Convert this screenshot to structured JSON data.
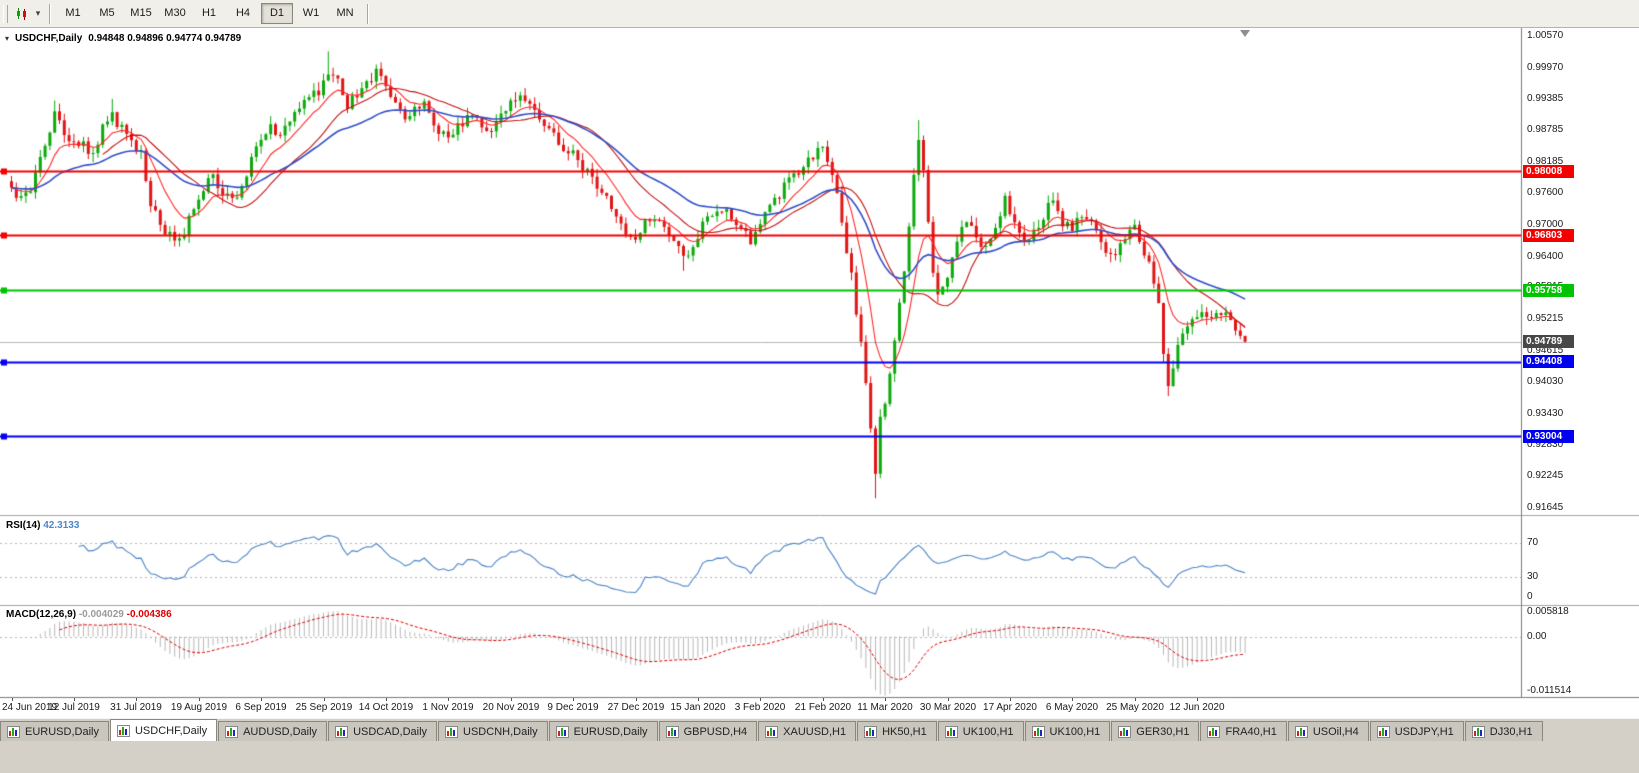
{
  "toolbar": {
    "timeframes": [
      {
        "label": "M1",
        "active": false
      },
      {
        "label": "M5",
        "active": false
      },
      {
        "label": "M15",
        "active": false
      },
      {
        "label": "M30",
        "active": false
      },
      {
        "label": "H1",
        "active": false
      },
      {
        "label": "H4",
        "active": false
      },
      {
        "label": "D1",
        "active": true
      },
      {
        "label": "W1",
        "active": false
      },
      {
        "label": "MN",
        "active": false
      }
    ]
  },
  "main_chart": {
    "title": "USDCHF,Daily",
    "ohlc_text": "0.94848 0.94896 0.94774 0.94789",
    "axis_labels": [
      "1.00570",
      "0.99970",
      "0.99385",
      "0.98785",
      "0.98185",
      "0.97600",
      "0.97000",
      "0.96400",
      "0.95815",
      "0.95215",
      "0.94615",
      "0.94030",
      "0.93430",
      "0.92830",
      "0.92245",
      "0.91645"
    ],
    "hlines": [
      {
        "label": "0.98008",
        "price": 0.98008,
        "color": "#f40000",
        "width": 2
      },
      {
        "label": "0.96803",
        "price": 0.96803,
        "color": "#f40000",
        "width": 2
      },
      {
        "label": "0.95758",
        "price": 0.95758,
        "color": "#00c400",
        "width": 2
      },
      {
        "label": "0.94408",
        "price": 0.94408,
        "color": "#0000f0",
        "width": 2
      },
      {
        "label": "0.93004",
        "price": 0.93004,
        "color": "#0000f0",
        "width": 2
      }
    ],
    "current_price": {
      "label": "0.94789",
      "value": 0.94789,
      "tag_color": "#474747",
      "line_color": "#b6b6b6"
    }
  },
  "rsi": {
    "label": "RSI(14)",
    "value_text": "42.3133",
    "period": 14,
    "levels": [
      70,
      30
    ],
    "axis_labels": [
      "70",
      "30",
      "0"
    ],
    "line_color": "#4f86c8"
  },
  "macd": {
    "label": "MACD(12,26,9)",
    "value_text": "-0.004029",
    "signal_text": "-0.004386",
    "axis_labels": [
      "0.005818",
      "0.00",
      "-0.011514"
    ],
    "max": 0.005818,
    "min": -0.011514,
    "hist_color": "#b9b9b9",
    "signal_color": "#e00000"
  },
  "xaxis": {
    "labels": [
      "24 Jun 2019",
      "12 Jul 2019",
      "31 Jul 2019",
      "19 Aug 2019",
      "6 Sep 2019",
      "25 Sep 2019",
      "14 Oct 2019",
      "1 Nov 2019",
      "20 Nov 2019",
      "9 Dec 2019",
      "27 Dec 2019",
      "15 Jan 2020",
      "3 Feb 2020",
      "21 Feb 2020",
      "11 Mar 2020",
      "30 Mar 2020",
      "17 Apr 2020",
      "6 May 2020",
      "25 May 2020",
      "12 Jun 2020"
    ]
  },
  "tabs": [
    {
      "label": "EURUSD,Daily",
      "active": false
    },
    {
      "label": "USDCHF,Daily",
      "active": true
    },
    {
      "label": "AUDUSD,Daily",
      "active": false
    },
    {
      "label": "USDCAD,Daily",
      "active": false
    },
    {
      "label": "USDCNH,Daily",
      "active": false
    },
    {
      "label": "EURUSD,Daily",
      "active": false
    },
    {
      "label": "GBPUSD,H4",
      "active": false
    },
    {
      "label": "XAUUSD,H1",
      "active": false
    },
    {
      "label": "HK50,H1",
      "active": false
    },
    {
      "label": "UK100,H1",
      "active": false
    },
    {
      "label": "UK100,H1",
      "active": false
    },
    {
      "label": "GER30,H1",
      "active": false
    },
    {
      "label": "FRA40,H1",
      "active": false
    },
    {
      "label": "USOil,H4",
      "active": false
    },
    {
      "label": "USDJPY,H1",
      "active": false
    },
    {
      "label": "DJ30,H1",
      "active": false
    }
  ],
  "chart_data": {
    "type": "candlestick",
    "symbol": "USDCHF",
    "period": "Daily",
    "title": "USDCHF,Daily",
    "price_max": 1.0057,
    "price_min": 0.91645,
    "candle_count": 258,
    "bars_per_x_label": 13,
    "up_color": "#0caa0c",
    "down_color": "#e01616",
    "moving_averages": [
      {
        "kind": "ema",
        "period": 9,
        "color": "#ff2a2a",
        "width": 1.1
      },
      {
        "kind": "sma",
        "period": 20,
        "color": "#c41414",
        "width": 1.1
      },
      {
        "kind": "ema",
        "period": 34,
        "color": "#3350c8",
        "width": 1.6
      }
    ],
    "close_anchors": [
      [
        0,
        0.977
      ],
      [
        2,
        0.9745
      ],
      [
        4,
        0.976
      ],
      [
        7,
        0.986
      ],
      [
        9,
        0.9905
      ],
      [
        11,
        0.987
      ],
      [
        13,
        0.985
      ],
      [
        15,
        0.986
      ],
      [
        17,
        0.983
      ],
      [
        19,
        0.988
      ],
      [
        21,
        0.991
      ],
      [
        23,
        0.988
      ],
      [
        25,
        0.9855
      ],
      [
        27,
        0.983
      ],
      [
        29,
        0.974
      ],
      [
        31,
        0.97
      ],
      [
        34,
        0.9672
      ],
      [
        36,
        0.969
      ],
      [
        38,
        0.974
      ],
      [
        40,
        0.9765
      ],
      [
        42,
        0.979
      ],
      [
        44,
        0.9755
      ],
      [
        46,
        0.9745
      ],
      [
        48,
        0.978
      ],
      [
        50,
        0.982
      ],
      [
        52,
        0.9855
      ],
      [
        54,
        0.9885
      ],
      [
        56,
        0.987
      ],
      [
        58,
        0.989
      ],
      [
        60,
        0.9915
      ],
      [
        62,
        0.994
      ],
      [
        64,
        0.9955
      ],
      [
        66,
        0.9985
      ],
      [
        68,
        0.9975
      ],
      [
        70,
        0.993
      ],
      [
        72,
        0.9945
      ],
      [
        74,
        0.9965
      ],
      [
        76,
        0.9985
      ],
      [
        78,
        0.996
      ],
      [
        80,
        0.993
      ],
      [
        82,
        0.9905
      ],
      [
        84,
        0.992
      ],
      [
        86,
        0.994
      ],
      [
        88,
        0.9895
      ],
      [
        90,
        0.987
      ],
      [
        92,
        0.988
      ],
      [
        94,
        0.9895
      ],
      [
        96,
        0.991
      ],
      [
        98,
        0.9885
      ],
      [
        100,
        0.988
      ],
      [
        102,
        0.9905
      ],
      [
        104,
        0.993
      ],
      [
        106,
        0.995
      ],
      [
        108,
        0.9935
      ],
      [
        110,
        0.9905
      ],
      [
        112,
        0.989
      ],
      [
        114,
        0.986
      ],
      [
        116,
        0.984
      ],
      [
        118,
        0.9825
      ],
      [
        120,
        0.98
      ],
      [
        122,
        0.9775
      ],
      [
        124,
        0.976
      ],
      [
        126,
        0.9715
      ],
      [
        128,
        0.9685
      ],
      [
        130,
        0.968
      ],
      [
        132,
        0.9705
      ],
      [
        134,
        0.972
      ],
      [
        136,
        0.97
      ],
      [
        138,
        0.9665
      ],
      [
        140,
        0.964
      ],
      [
        142,
        0.9665
      ],
      [
        144,
        0.97
      ],
      [
        146,
        0.972
      ],
      [
        148,
        0.9735
      ],
      [
        150,
        0.9715
      ],
      [
        152,
        0.969
      ],
      [
        154,
        0.967
      ],
      [
        156,
        0.97
      ],
      [
        158,
        0.973
      ],
      [
        160,
        0.976
      ],
      [
        162,
        0.978
      ],
      [
        164,
        0.98
      ],
      [
        166,
        0.982
      ],
      [
        168,
        0.984
      ],
      [
        169,
        0.985
      ],
      [
        171,
        0.98
      ],
      [
        173,
        0.97
      ],
      [
        175,
        0.96
      ],
      [
        177,
        0.948
      ],
      [
        179,
        0.931
      ],
      [
        180,
        0.924
      ],
      [
        181,
        0.933
      ],
      [
        182,
        0.937
      ],
      [
        183,
        0.942
      ],
      [
        184,
        0.948
      ],
      [
        185,
        0.955
      ],
      [
        186,
        0.962
      ],
      [
        187,
        0.97
      ],
      [
        188,
        0.979
      ],
      [
        189,
        0.986
      ],
      [
        190,
        0.98
      ],
      [
        191,
        0.97
      ],
      [
        192,
        0.962
      ],
      [
        193,
        0.956
      ],
      [
        194,
        0.959
      ],
      [
        195,
        0.961
      ],
      [
        197,
        0.967
      ],
      [
        199,
        0.97
      ],
      [
        201,
        0.968
      ],
      [
        203,
        0.965
      ],
      [
        205,
        0.97
      ],
      [
        207,
        0.975
      ],
      [
        209,
        0.97
      ],
      [
        211,
        0.9665
      ],
      [
        213,
        0.969
      ],
      [
        215,
        0.972
      ],
      [
        217,
        0.9745
      ],
      [
        219,
        0.9705
      ],
      [
        221,
        0.9695
      ],
      [
        223,
        0.9725
      ],
      [
        225,
        0.97
      ],
      [
        227,
        0.9665
      ],
      [
        229,
        0.9645
      ],
      [
        231,
        0.9655
      ],
      [
        233,
        0.969
      ],
      [
        234,
        0.9695
      ],
      [
        236,
        0.965
      ],
      [
        238,
        0.9595
      ],
      [
        239,
        0.9555
      ],
      [
        240,
        0.945
      ],
      [
        241,
        0.939
      ],
      [
        242,
        0.9425
      ],
      [
        243,
        0.9465
      ],
      [
        244,
        0.95
      ],
      [
        246,
        0.952
      ],
      [
        248,
        0.9545
      ],
      [
        250,
        0.9515
      ],
      [
        252,
        0.953
      ],
      [
        254,
        0.952
      ],
      [
        255,
        0.95
      ],
      [
        256,
        0.949
      ],
      [
        257,
        0.9479
      ]
    ],
    "wick_overrides": [
      {
        "i": 9,
        "h": 0.9935
      },
      {
        "i": 21,
        "h": 0.9938
      },
      {
        "i": 34,
        "l": 0.9659
      },
      {
        "i": 66,
        "h": 1.0028
      },
      {
        "i": 140,
        "l": 0.9613
      },
      {
        "i": 180,
        "l": 0.9183
      },
      {
        "i": 189,
        "h": 0.9898
      },
      {
        "i": 241,
        "l": 0.9376
      },
      {
        "i": 257,
        "h": 0.94896,
        "l": 0.94774
      }
    ]
  }
}
